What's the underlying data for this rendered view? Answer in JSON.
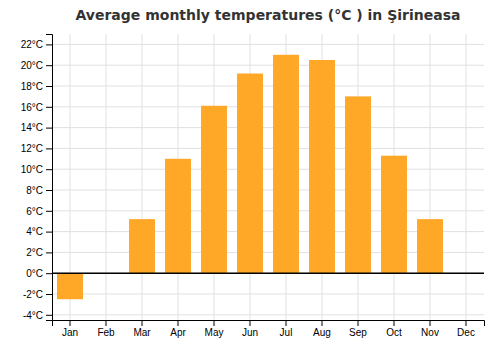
{
  "chart_data": {
    "type": "bar",
    "title": "Average monthly temperatures (°C ) in Şirineasa",
    "categories": [
      "Jan",
      "Feb",
      "Mar",
      "Apr",
      "May",
      "Jun",
      "Jul",
      "Aug",
      "Sep",
      "Oct",
      "Nov",
      "Dec"
    ],
    "values": [
      -2.5,
      0.0,
      5.2,
      11.0,
      16.1,
      19.2,
      21.0,
      20.5,
      17.0,
      11.3,
      5.2,
      0.0
    ],
    "color": "#FFA726",
    "ylim": [
      -4.5,
      23
    ],
    "yticks": [
      {
        "value": -4,
        "label": "-4°C"
      },
      {
        "value": -2,
        "label": "-2°C"
      },
      {
        "value": 0,
        "label": "0°C"
      },
      {
        "value": 2,
        "label": "2°C"
      },
      {
        "value": 4,
        "label": "4°C"
      },
      {
        "value": 6,
        "label": "6°C"
      },
      {
        "value": 8,
        "label": "8°C"
      },
      {
        "value": 10,
        "label": "10°C"
      },
      {
        "value": 12,
        "label": "12°C"
      },
      {
        "value": 14,
        "label": "14°C"
      },
      {
        "value": 16,
        "label": "16°C"
      },
      {
        "value": 18,
        "label": "18°C"
      },
      {
        "value": 20,
        "label": "20°C"
      },
      {
        "value": 22,
        "label": "22°C"
      }
    ],
    "grid": true
  }
}
